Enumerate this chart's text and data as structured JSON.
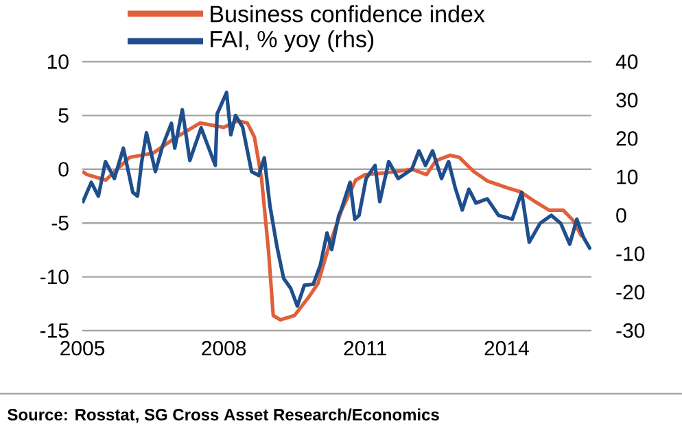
{
  "chart_data": {
    "type": "line",
    "legend": "top",
    "grid": "y",
    "annotations": [
      "Source: Rosstat, SG Cross Asset Research/Economics"
    ],
    "xlim": [
      2005,
      2015.8
    ],
    "xticks": [
      2005,
      2008,
      2011,
      2014
    ],
    "ylim": [
      -15,
      10
    ],
    "yticks": [
      -15,
      -10,
      -5,
      0,
      5,
      10
    ],
    "y2lim": [
      -30,
      40
    ],
    "y2ticks": [
      -30,
      -20,
      -10,
      0,
      10,
      20,
      30,
      40
    ],
    "series": [
      {
        "name": "Business confidence index",
        "color": "#e0603a",
        "x": [
          2005.0,
          2005.1,
          2005.5,
          2006.0,
          2006.5,
          2007.0,
          2007.5,
          2008.0,
          2008.3,
          2008.5,
          2008.65,
          2008.8,
          2008.95,
          2009.05,
          2009.2,
          2009.5,
          2009.8,
          2010.0,
          2010.2,
          2010.5,
          2010.8,
          2011.0,
          2011.5,
          2012.0,
          2012.3,
          2012.5,
          2012.8,
          2013.0,
          2013.3,
          2013.6,
          2014.0,
          2014.3,
          2014.6,
          2014.9,
          2015.2,
          2015.4,
          2015.6
        ],
        "values": [
          -0.2,
          -0.5,
          -1,
          1.1,
          1.5,
          3,
          4.3,
          3.9,
          4.5,
          4.3,
          3,
          -0.8,
          -7.6,
          -13.6,
          -14,
          -13.6,
          -11.9,
          -10.6,
          -7.6,
          -3.8,
          -1,
          -0.5,
          -0.3,
          0,
          -0.5,
          0.8,
          1.3,
          1.1,
          -0.2,
          -1.1,
          -1.7,
          -2.1,
          -3,
          -3.8,
          -3.8,
          -4.7,
          -6.3
        ]
      },
      {
        "name": "FAI, % yoy (rhs)",
        "color": "#1f4e8c",
        "axis": "y2",
        "x": [
          2005.0,
          2005.19,
          2005.34,
          2005.49,
          2005.68,
          2005.87,
          2006.07,
          2006.17,
          2006.26,
          2006.36,
          2006.55,
          2006.7,
          2006.89,
          2006.96,
          2007.12,
          2007.28,
          2007.52,
          2007.82,
          2007.86,
          2008.06,
          2008.15,
          2008.25,
          2008.4,
          2008.59,
          2008.74,
          2008.86,
          2008.98,
          2009.13,
          2009.27,
          2009.42,
          2009.56,
          2009.71,
          2009.9,
          2010.05,
          2010.19,
          2010.29,
          2010.44,
          2010.49,
          2010.68,
          2010.78,
          2010.87,
          2011.02,
          2011.21,
          2011.31,
          2011.5,
          2011.7,
          2011.99,
          2012.14,
          2012.28,
          2012.43,
          2012.62,
          2012.77,
          2012.91,
          2013.06,
          2013.2,
          2013.35,
          2013.59,
          2013.83,
          2014.12,
          2014.32,
          2014.48,
          2014.71,
          2014.95,
          2015.15,
          2015.34,
          2015.49,
          2015.63,
          2015.78
        ],
        "values": [
          3.2,
          8.6,
          5,
          14,
          9.6,
          17.5,
          6,
          5,
          14,
          21.5,
          11.4,
          18,
          24,
          17.5,
          27.5,
          14.3,
          22.8,
          13,
          26.4,
          32,
          21,
          26,
          23,
          11.4,
          10.4,
          15,
          2.5,
          -8.2,
          -16.4,
          -19,
          -23.6,
          -18.2,
          -17.9,
          -12.9,
          -4.6,
          -8.9,
          0,
          1.4,
          8.6,
          -1,
          0,
          9.6,
          13,
          3.6,
          14,
          9.6,
          12,
          16.8,
          13,
          16.8,
          9.6,
          14,
          7.2,
          1.4,
          6.8,
          3.2,
          4.3,
          0,
          -1,
          6,
          -7,
          -2.1,
          0,
          -2.1,
          -7.5,
          -1,
          -5.7,
          -8.9
        ]
      }
    ]
  }
}
